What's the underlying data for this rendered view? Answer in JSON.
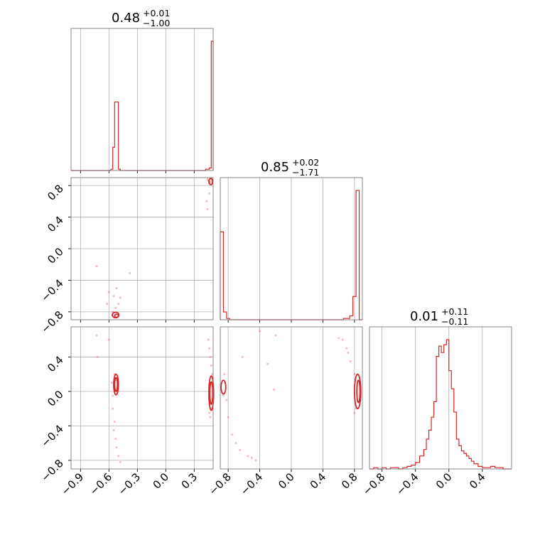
{
  "chart_data": {
    "type": "corner",
    "color": "#d62728",
    "grid": true,
    "panels": [
      {
        "id": "hist-0",
        "type": "step-histogram",
        "param": 0,
        "title": {
          "value": "0.48",
          "plus": "+0.01",
          "minus": "−1.00"
        },
        "xlim": [
          -1.0,
          0.5
        ],
        "bin_edges": [
          -1.0,
          -0.94,
          -0.88,
          -0.82,
          -0.76,
          -0.7,
          -0.64,
          -0.58,
          -0.56,
          -0.54,
          -0.52,
          -0.5,
          -0.48,
          -0.42,
          -0.36,
          -0.3,
          -0.24,
          -0.18,
          -0.12,
          -0.06,
          0.0,
          0.06,
          0.12,
          0.18,
          0.24,
          0.3,
          0.36,
          0.42,
          0.46,
          0.48,
          0.5
        ],
        "counts": [
          0,
          0,
          0,
          0,
          0,
          0,
          0,
          0.01,
          0.18,
          0.53,
          0.53,
          0.01,
          0,
          0,
          0,
          0,
          0,
          0,
          0,
          0,
          0,
          0,
          0,
          0,
          0,
          0,
          0,
          0.01,
          0.02,
          1.0
        ]
      },
      {
        "id": "scatter-1-0",
        "type": "scatter-contour",
        "xparam": 0,
        "yparam": 1,
        "xlim": [
          -1.0,
          0.5
        ],
        "ylim": [
          -0.9,
          0.9
        ],
        "yticks": [
          "0.8",
          "0.4",
          "0.0",
          "−0.4",
          "−0.8"
        ],
        "ytick_values": [
          0.8,
          0.4,
          0.0,
          -0.4,
          -0.8
        ],
        "points": [
          [
            -0.73,
            -0.22
          ],
          [
            -0.6,
            -0.55
          ],
          [
            -0.52,
            -0.5
          ],
          [
            -0.55,
            -0.6
          ],
          [
            -0.5,
            -0.7
          ],
          [
            -0.56,
            -0.8
          ],
          [
            -0.38,
            -0.31
          ],
          [
            -0.53,
            -0.75
          ],
          [
            0.44,
            0.88
          ],
          [
            0.46,
            0.84
          ],
          [
            0.47,
            0.82
          ],
          [
            0.45,
            0.86
          ],
          [
            0.48,
            0.85
          ],
          [
            0.43,
            0.6
          ],
          [
            0.44,
            0.5
          ],
          [
            0.46,
            0.7
          ],
          [
            -0.62,
            -0.7
          ],
          [
            -0.48,
            -0.62
          ]
        ],
        "contours": [
          {
            "center": [
              -0.53,
              -0.84
            ],
            "rx": 0.035,
            "ry": 0.035
          },
          {
            "center": [
              -0.52,
              -0.85
            ],
            "rx": 0.02,
            "ry": 0.02
          },
          {
            "center": [
              0.475,
              0.85
            ],
            "rx": 0.02,
            "ry": 0.04
          }
        ]
      },
      {
        "id": "hist-1",
        "type": "step-histogram",
        "param": 1,
        "title": {
          "value": "0.85",
          "plus": "+0.02",
          "minus": "−1.71"
        },
        "xlim": [
          -0.9,
          0.9
        ],
        "bin_edges": [
          -0.9,
          -0.86,
          -0.82,
          -0.78,
          -0.7,
          -0.6,
          -0.5,
          -0.4,
          -0.3,
          -0.2,
          -0.1,
          0.0,
          0.1,
          0.2,
          0.3,
          0.4,
          0.5,
          0.6,
          0.66,
          0.74,
          0.78,
          0.82,
          0.86,
          0.9
        ],
        "counts": [
          0.68,
          0.06,
          0.01,
          0,
          0,
          0,
          0,
          0,
          0,
          0,
          0,
          0,
          0,
          0,
          0,
          0,
          0,
          0,
          0.01,
          0.03,
          0.18,
          1.0,
          0
        ]
      },
      {
        "id": "scatter-2-0",
        "type": "scatter-contour",
        "xparam": 0,
        "yparam": 2,
        "xlim": [
          -1.0,
          0.5
        ],
        "ylim": [
          -0.9,
          0.75
        ],
        "xticks": [
          "−0.9",
          "−0.6",
          "−0.3",
          "0.0",
          "0.3"
        ],
        "xtick_values": [
          -0.9,
          -0.6,
          -0.3,
          0.0,
          0.3
        ],
        "yticks": [
          "0.4",
          "0.0",
          "−0.4",
          "−0.8"
        ],
        "ytick_values": [
          0.4,
          0.0,
          -0.4,
          -0.8
        ],
        "points": [
          [
            -0.73,
            0.65
          ],
          [
            -0.72,
            0.4
          ],
          [
            -0.6,
            0.6
          ],
          [
            -0.54,
            0.2
          ],
          [
            -0.56,
            -0.2
          ],
          [
            -0.54,
            -0.35
          ],
          [
            -0.53,
            -0.55
          ],
          [
            -0.52,
            -0.65
          ],
          [
            -0.5,
            -0.75
          ],
          [
            -0.48,
            -0.82
          ],
          [
            -0.55,
            -0.45
          ],
          [
            0.46,
            0.5
          ],
          [
            0.47,
            0.4
          ],
          [
            0.48,
            0.3
          ],
          [
            0.46,
            -0.25
          ],
          [
            0.47,
            -0.3
          ],
          [
            0.45,
            0.6
          ],
          [
            -0.57,
            0.1
          ],
          [
            -0.56,
            -0.05
          ],
          [
            0.48,
            -0.2
          ],
          [
            0.49,
            0.2
          ]
        ],
        "contours": [
          {
            "center": [
              -0.525,
              0.08
            ],
            "rx": 0.025,
            "ry": 0.12
          },
          {
            "center": [
              -0.525,
              0.08
            ],
            "rx": 0.015,
            "ry": 0.08
          },
          {
            "center": [
              0.48,
              -0.02
            ],
            "rx": 0.025,
            "ry": 0.2
          },
          {
            "center": [
              0.48,
              -0.02
            ],
            "rx": 0.015,
            "ry": 0.13
          }
        ]
      },
      {
        "id": "scatter-2-1",
        "type": "scatter-contour",
        "xparam": 1,
        "yparam": 2,
        "xlim": [
          -0.9,
          0.9
        ],
        "ylim": [
          -0.9,
          0.75
        ],
        "xticks": [
          "−0.8",
          "−0.4",
          "0.0",
          "0.4",
          "0.8"
        ],
        "xtick_values": [
          -0.8,
          -0.4,
          0.0,
          0.4,
          0.8
        ],
        "points": [
          [
            -0.4,
            0.7
          ],
          [
            -0.2,
            0.65
          ],
          [
            -0.3,
            0.32
          ],
          [
            -0.22,
            0.02
          ],
          [
            -0.62,
            0.4
          ],
          [
            -0.82,
            -0.1
          ],
          [
            -0.8,
            -0.3
          ],
          [
            -0.75,
            -0.5
          ],
          [
            -0.7,
            -0.6
          ],
          [
            -0.65,
            -0.68
          ],
          [
            -0.55,
            -0.75
          ],
          [
            -0.45,
            -0.8
          ],
          [
            -0.5,
            -0.77
          ],
          [
            -0.85,
            0.2
          ],
          [
            -0.86,
            -0.05
          ],
          [
            0.65,
            0.6
          ],
          [
            0.7,
            0.5
          ],
          [
            0.75,
            0.35
          ],
          [
            0.8,
            0.2
          ],
          [
            0.82,
            -0.2
          ],
          [
            0.8,
            -0.25
          ],
          [
            0.6,
            0.62
          ],
          [
            0.72,
            0.45
          ],
          [
            -0.84,
            0.1
          ]
        ],
        "contours": [
          {
            "center": [
              -0.86,
              0.05
            ],
            "rx": 0.03,
            "ry": 0.08
          },
          {
            "center": [
              0.84,
              0.0
            ],
            "rx": 0.04,
            "ry": 0.2
          },
          {
            "center": [
              0.85,
              0.0
            ],
            "rx": 0.02,
            "ry": 0.13
          }
        ]
      },
      {
        "id": "hist-2",
        "type": "step-histogram",
        "param": 2,
        "title": {
          "value": "0.01",
          "plus": "+0.11",
          "minus": "−0.11"
        },
        "xlim": [
          -0.95,
          0.75
        ],
        "xticks": [
          "−0.8",
          "−0.4",
          "0.0",
          "0.4"
        ],
        "xtick_values": [
          -0.8,
          -0.4,
          0.0,
          0.4
        ],
        "bin_edges": [
          -0.95,
          -0.9,
          -0.85,
          -0.8,
          -0.75,
          -0.7,
          -0.65,
          -0.6,
          -0.55,
          -0.5,
          -0.45,
          -0.4,
          -0.35,
          -0.3,
          -0.27,
          -0.24,
          -0.21,
          -0.18,
          -0.15,
          -0.12,
          -0.09,
          -0.06,
          -0.03,
          0.0,
          0.03,
          0.06,
          0.09,
          0.12,
          0.15,
          0.18,
          0.21,
          0.24,
          0.27,
          0.3,
          0.35,
          0.4,
          0.45,
          0.5,
          0.55,
          0.6,
          0.65,
          0.7,
          0.75
        ],
        "counts": [
          0,
          0.01,
          0,
          0.01,
          0,
          0.01,
          0.01,
          0,
          0.01,
          0.02,
          0.03,
          0.05,
          0.1,
          0.15,
          0.23,
          0.3,
          0.4,
          0.52,
          0.87,
          0.95,
          0.9,
          0.96,
          1.0,
          0.76,
          0.62,
          0.44,
          0.23,
          0.18,
          0.14,
          0.12,
          0.1,
          0.08,
          0.06,
          0.04,
          0.02,
          0.01,
          0.01,
          0.02,
          0.01,
          0.01,
          0,
          0
        ]
      }
    ]
  }
}
